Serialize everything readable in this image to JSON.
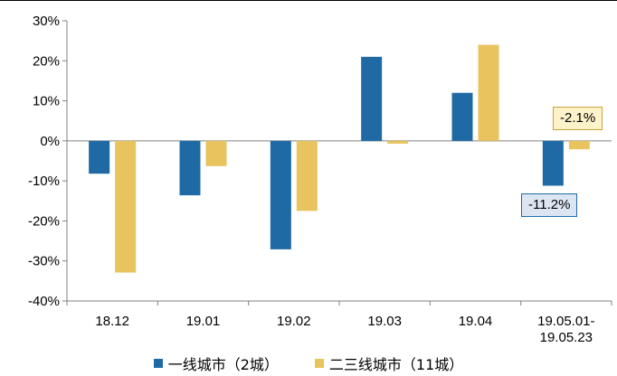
{
  "chart_data": {
    "type": "bar",
    "categories": [
      "18.12",
      "19.01",
      "19.02",
      "19.03",
      "19.04",
      "19.05.01-\n19.05.23"
    ],
    "series": [
      {
        "name": "一线城市（2城）",
        "color": "#1F6AA5",
        "values": [
          -8.2,
          -13.6,
          -27.1,
          21.0,
          12.0,
          -11.2
        ]
      },
      {
        "name": "二三线城市（11城）",
        "color": "#E8C35E",
        "values": [
          -32.9,
          -6.3,
          -17.5,
          -0.7,
          24.0,
          -2.1
        ]
      }
    ],
    "ylim": [
      -40,
      30
    ],
    "yticks": [
      "-40%",
      "-30%",
      "-20%",
      "-10%",
      "0%",
      "10%",
      "20%",
      "30%"
    ],
    "ytick_values": [
      -40,
      -30,
      -20,
      -10,
      0,
      10,
      20,
      30
    ],
    "annotations": [
      {
        "text": "-2.1%",
        "series": 1,
        "category": 5,
        "bg": "#FDF2C9",
        "border": "#C9A43A"
      },
      {
        "text": "-11.2%",
        "series": 0,
        "category": 5,
        "bg": "#DCE6F2",
        "border": "#1F6AA5"
      }
    ],
    "grid": false,
    "legend": "bottom"
  },
  "legend": {
    "item1": "一线城市（2城）",
    "item2": "二三线城市（11城）"
  },
  "callouts": {
    "a": "-2.1%",
    "b": "-11.2%"
  }
}
